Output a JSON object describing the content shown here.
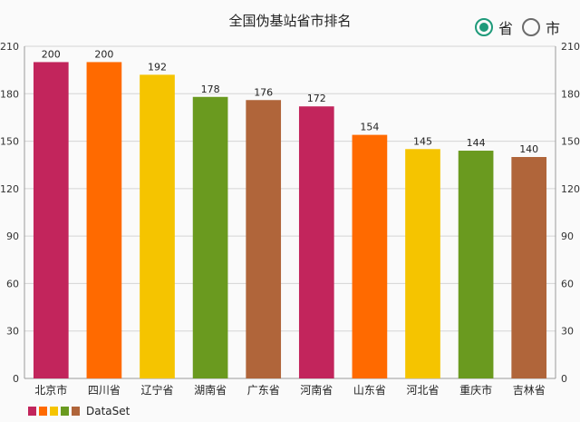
{
  "chart_data": {
    "type": "bar",
    "title": "全国伪基站省市排名",
    "categories": [
      "北京市",
      "四川省",
      "辽宁省",
      "湖南省",
      "广东省",
      "河南省",
      "山东省",
      "河北省",
      "重庆市",
      "吉林省"
    ],
    "values": [
      200,
      200,
      192,
      178,
      176,
      172,
      154,
      145,
      144,
      140
    ],
    "ylim": [
      0,
      210
    ],
    "yticks": [
      0,
      30,
      60,
      90,
      120,
      150,
      180,
      210
    ],
    "grid": true,
    "bar_colors": [
      "#c2255c",
      "#ff6a00",
      "#f5c400",
      "#6a9a1f",
      "#b0653a"
    ],
    "legend": {
      "label": "DataSet",
      "position": "bottom-left"
    }
  },
  "toggle": {
    "options": [
      "省",
      "市"
    ],
    "selected": "省"
  },
  "colors": {
    "radio_accent": "#1e9a7a",
    "grid": "#d4d4d4",
    "axis": "#9a9a9a"
  }
}
